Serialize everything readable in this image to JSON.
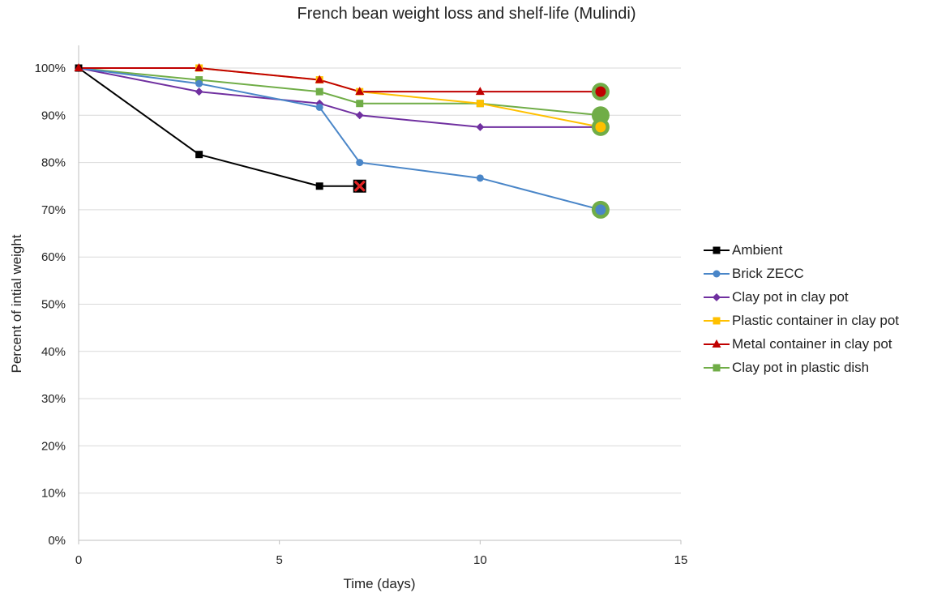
{
  "chart_data": {
    "type": "line",
    "title": "French bean weight loss and shelf-life (Mulindi)",
    "xlabel": "Time (days)",
    "ylabel": "Percent of intial weight",
    "xlim": [
      0,
      15
    ],
    "ylim": [
      0,
      100
    ],
    "x_ticks": [
      "0",
      "5",
      "10",
      "15"
    ],
    "y_ticks": [
      "0%",
      "10%",
      "20%",
      "30%",
      "40%",
      "50%",
      "60%",
      "70%",
      "80%",
      "90%",
      "100%"
    ],
    "grid": "horizontal",
    "legend_position": "right",
    "series": [
      {
        "name": "Ambient",
        "color": "#000000",
        "marker": "square",
        "x": [
          0,
          3,
          6,
          7
        ],
        "y": [
          100,
          81.7,
          75,
          75
        ],
        "end_marker": "red-x"
      },
      {
        "name": "Brick ZECC",
        "color": "#4a86c8",
        "marker": "circle",
        "x": [
          0,
          3,
          6,
          7,
          10,
          13
        ],
        "y": [
          100,
          96.7,
          91.7,
          80,
          76.7,
          70
        ],
        "end_marker": "green-circle"
      },
      {
        "name": "Clay pot in clay pot",
        "color": "#7030a0",
        "marker": "diamond",
        "x": [
          0,
          3,
          6,
          7,
          10,
          13
        ],
        "y": [
          100,
          95,
          92.5,
          90,
          87.5,
          87.5
        ]
      },
      {
        "name": "Plastic container in clay pot",
        "color": "#ffc000",
        "marker": "square",
        "x": [
          0,
          3,
          6,
          7,
          10,
          13
        ],
        "y": [
          100,
          100,
          97.5,
          95,
          92.5,
          87.5
        ],
        "end_marker": "green-circle"
      },
      {
        "name": "Metal container in clay pot",
        "color": "#c00000",
        "marker": "triangle",
        "x": [
          0,
          3,
          6,
          7,
          10,
          13
        ],
        "y": [
          100,
          100,
          97.5,
          95,
          95,
          95
        ],
        "end_marker": "green-circle"
      },
      {
        "name": "Clay pot in plastic dish",
        "color": "#70ad47",
        "marker": "square",
        "x": [
          0,
          3,
          6,
          7,
          10,
          13
        ],
        "y": [
          100,
          97.5,
          95,
          92.5,
          92.5,
          90
        ],
        "end_marker": "green-circle"
      }
    ]
  }
}
